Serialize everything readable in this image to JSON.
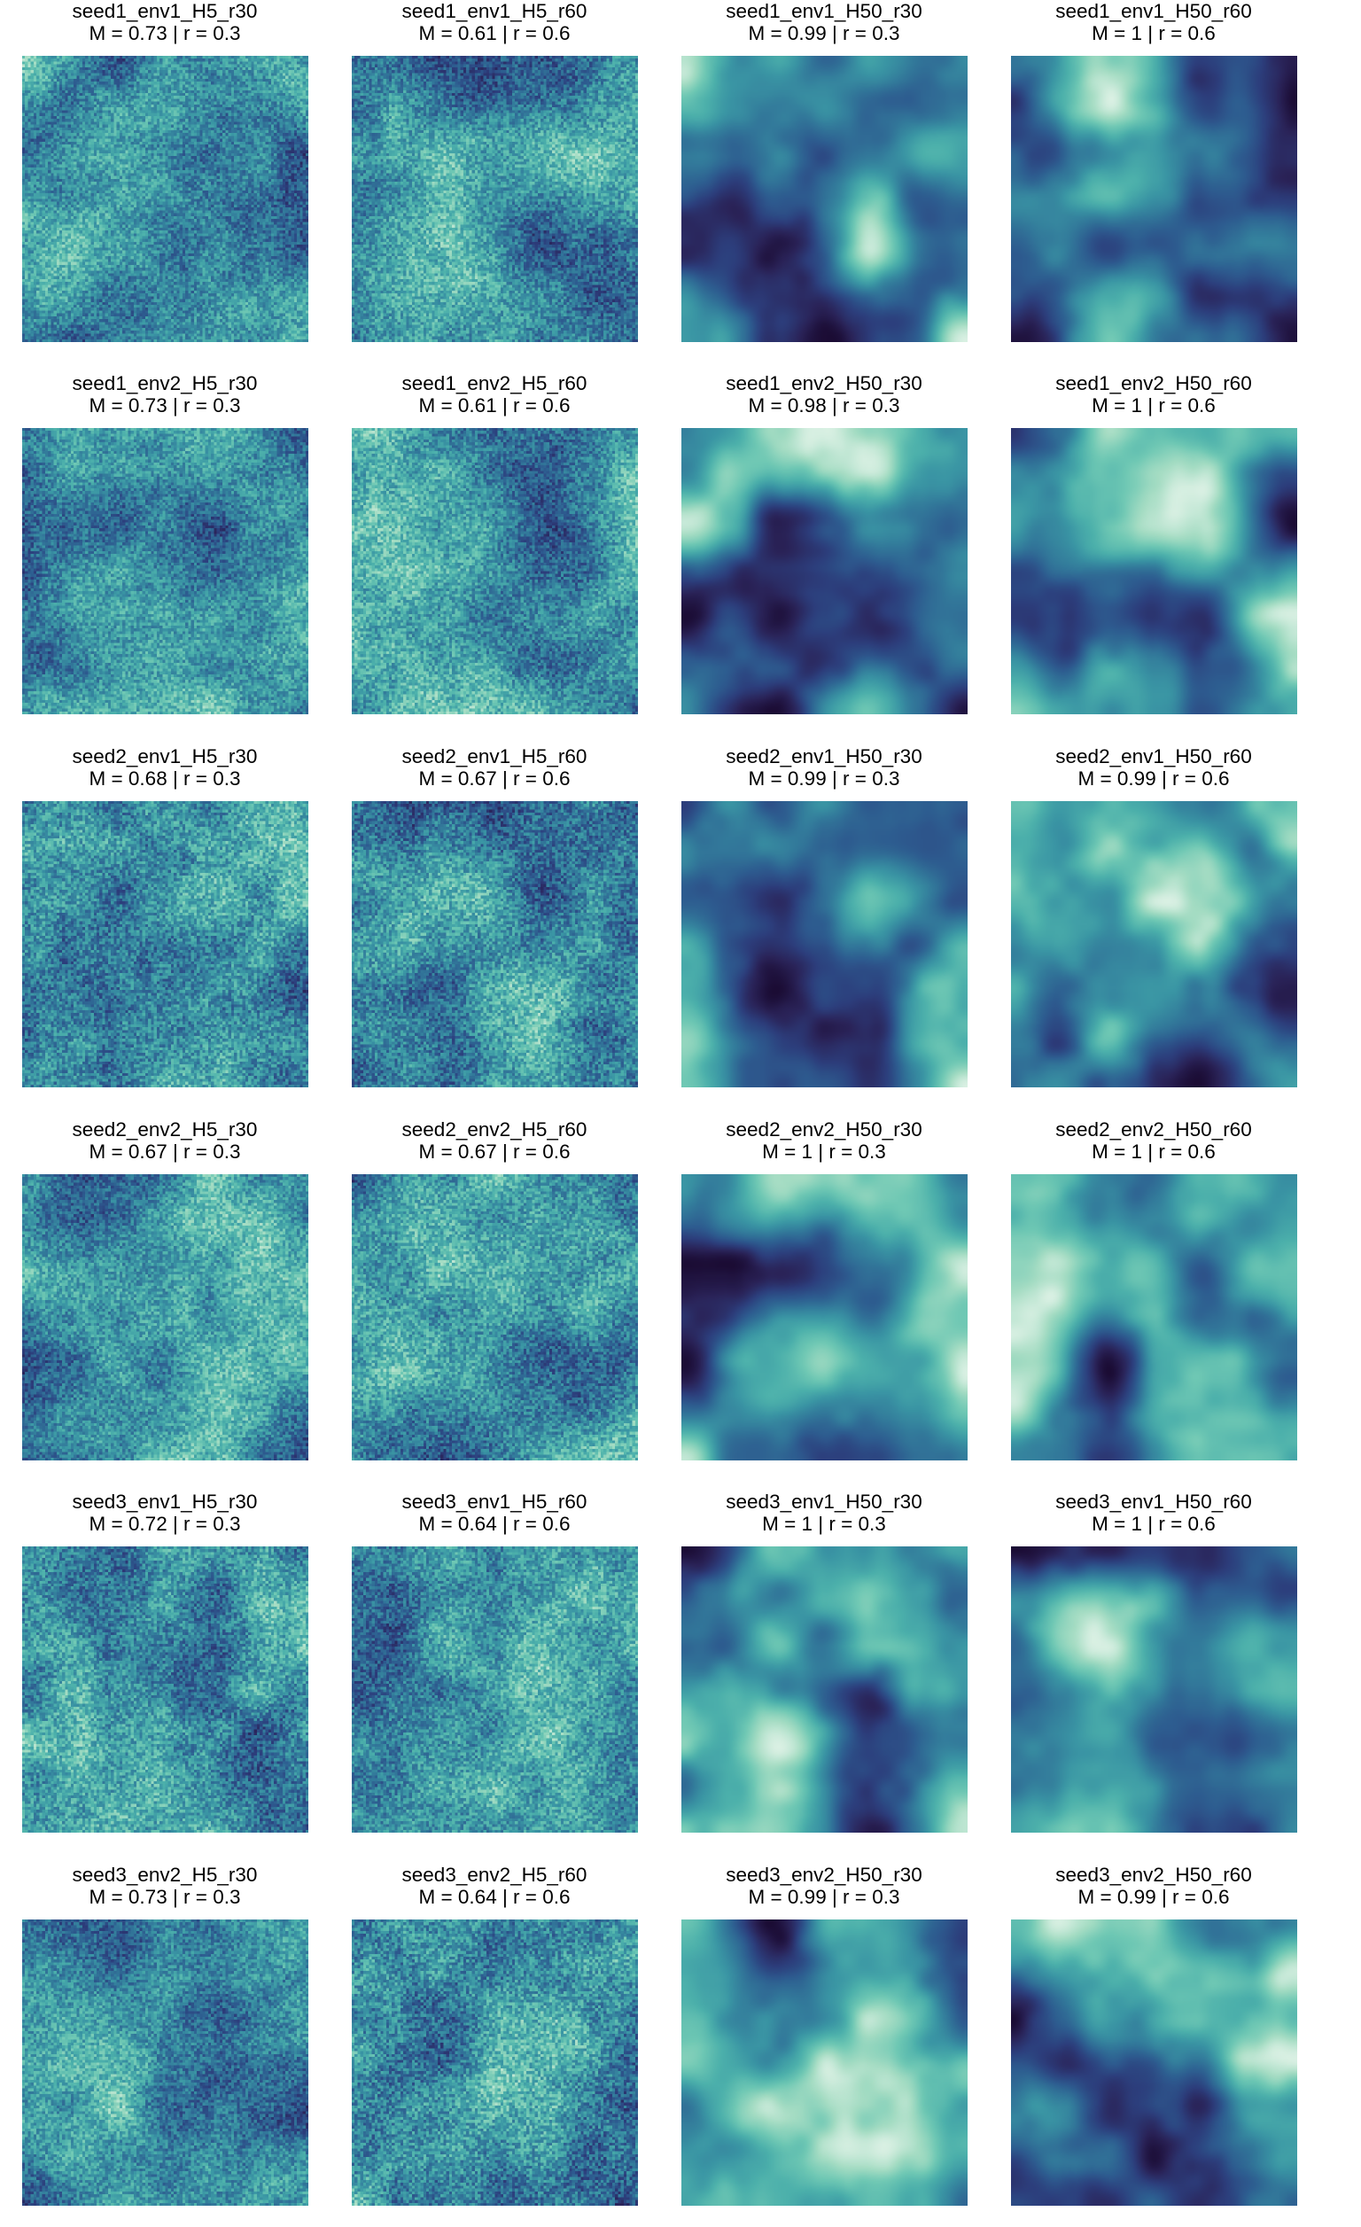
{
  "chart_data": [
    {
      "type": "heatmap",
      "title": "seed1_env1_H5_r30",
      "subtitle": "M = 0.73 | r = 0.3",
      "seed": 1,
      "H": 5
    },
    {
      "type": "heatmap",
      "title": "seed1_env1_H5_r60",
      "subtitle": "M = 0.61 | r = 0.6",
      "seed": 1,
      "H": 5
    },
    {
      "type": "heatmap",
      "title": "seed1_env1_H50_r30",
      "subtitle": "M = 0.99 | r = 0.3",
      "seed": 1,
      "H": 50
    },
    {
      "type": "heatmap",
      "title": "seed1_env1_H50_r60",
      "subtitle": "M = 1 | r = 0.6",
      "seed": 1,
      "H": 50
    },
    {
      "type": "heatmap",
      "title": "seed1_env2_H5_r30",
      "subtitle": "M = 0.73 | r = 0.3",
      "seed": 1,
      "H": 5
    },
    {
      "type": "heatmap",
      "title": "seed1_env2_H5_r60",
      "subtitle": "M = 0.61 | r = 0.6",
      "seed": 1,
      "H": 5
    },
    {
      "type": "heatmap",
      "title": "seed1_env2_H50_r30",
      "subtitle": "M = 0.98 | r = 0.3",
      "seed": 1,
      "H": 50
    },
    {
      "type": "heatmap",
      "title": "seed1_env2_H50_r60",
      "subtitle": "M = 1 | r = 0.6",
      "seed": 1,
      "H": 50
    },
    {
      "type": "heatmap",
      "title": "seed2_env1_H5_r30",
      "subtitle": "M = 0.68 | r = 0.3",
      "seed": 2,
      "H": 5
    },
    {
      "type": "heatmap",
      "title": "seed2_env1_H5_r60",
      "subtitle": "M = 0.67 | r = 0.6",
      "seed": 2,
      "H": 5
    },
    {
      "type": "heatmap",
      "title": "seed2_env1_H50_r30",
      "subtitle": "M = 0.99 | r = 0.3",
      "seed": 2,
      "H": 50
    },
    {
      "type": "heatmap",
      "title": "seed2_env1_H50_r60",
      "subtitle": "M = 0.99 | r = 0.6",
      "seed": 2,
      "H": 50
    },
    {
      "type": "heatmap",
      "title": "seed2_env2_H5_r30",
      "subtitle": "M = 0.67 | r = 0.3",
      "seed": 2,
      "H": 5
    },
    {
      "type": "heatmap",
      "title": "seed2_env2_H5_r60",
      "subtitle": "M = 0.67 | r = 0.6",
      "seed": 2,
      "H": 5
    },
    {
      "type": "heatmap",
      "title": "seed2_env2_H50_r30",
      "subtitle": "M = 1 | r = 0.3",
      "seed": 2,
      "H": 50
    },
    {
      "type": "heatmap",
      "title": "seed2_env2_H50_r60",
      "subtitle": "M = 1 | r = 0.6",
      "seed": 2,
      "H": 50
    },
    {
      "type": "heatmap",
      "title": "seed3_env1_H5_r30",
      "subtitle": "M = 0.72 | r = 0.3",
      "seed": 3,
      "H": 5
    },
    {
      "type": "heatmap",
      "title": "seed3_env1_H5_r60",
      "subtitle": "M = 0.64 | r = 0.6",
      "seed": 3,
      "H": 5
    },
    {
      "type": "heatmap",
      "title": "seed3_env1_H50_r30",
      "subtitle": "M = 1 | r = 0.3",
      "seed": 3,
      "H": 50
    },
    {
      "type": "heatmap",
      "title": "seed3_env1_H50_r60",
      "subtitle": "M = 1 | r = 0.6",
      "seed": 3,
      "H": 50
    },
    {
      "type": "heatmap",
      "title": "seed3_env2_H5_r30",
      "subtitle": "M = 0.73 | r = 0.3",
      "seed": 3,
      "H": 5
    },
    {
      "type": "heatmap",
      "title": "seed3_env2_H5_r60",
      "subtitle": "M = 0.64 | r = 0.6",
      "seed": 3,
      "H": 5
    },
    {
      "type": "heatmap",
      "title": "seed3_env2_H50_r30",
      "subtitle": "M = 0.99 | r = 0.3",
      "seed": 3,
      "H": 50
    },
    {
      "type": "heatmap",
      "title": "seed3_env2_H50_r60",
      "subtitle": "M = 0.99 | r = 0.6",
      "seed": 3,
      "H": 50
    }
  ],
  "colors": {
    "palette": [
      "#1b0c34",
      "#2a2358",
      "#2c3e7c",
      "#2d5b8f",
      "#32789a",
      "#3a95a4",
      "#4cb0ab",
      "#6fc8b4",
      "#a4dcc3",
      "#d9f0e3"
    ]
  }
}
